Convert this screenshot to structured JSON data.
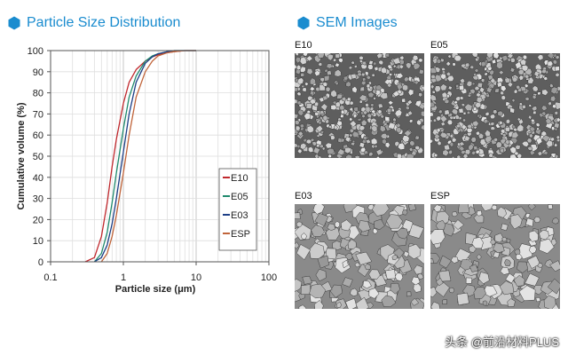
{
  "headers": {
    "left": "Particle Size Distribution",
    "right": "SEM Images"
  },
  "colors": {
    "accent": "#1a8ccf",
    "E10": "#c0282d",
    "E05": "#1f8a6d",
    "E03": "#1d3f86",
    "ESP": "#c0643a"
  },
  "chart_data": {
    "type": "line",
    "title": "",
    "xlabel": "Particle size  (μm)",
    "ylabel": "Cumulative volume  (%)",
    "xscale": "log",
    "xlim": [
      0.1,
      100
    ],
    "ylim": [
      0,
      100
    ],
    "xticks": [
      "0.1",
      "1",
      "10",
      "100"
    ],
    "yticks": [
      "0",
      "10",
      "20",
      "30",
      "40",
      "50",
      "60",
      "70",
      "80",
      "90",
      "100"
    ],
    "grid": true,
    "legend_position": "right",
    "series": [
      {
        "name": "E10",
        "color": "#c0282d",
        "x": [
          0.3,
          0.4,
          0.5,
          0.6,
          0.7,
          0.8,
          1.0,
          1.2,
          1.5,
          2,
          2.5,
          3,
          4,
          5,
          7,
          10
        ],
        "y": [
          0,
          2,
          12,
          28,
          45,
          58,
          75,
          85,
          91,
          95,
          97,
          98,
          99,
          99.5,
          100,
          100
        ]
      },
      {
        "name": "E05",
        "color": "#1f8a6d",
        "x": [
          0.4,
          0.5,
          0.6,
          0.7,
          0.8,
          1.0,
          1.2,
          1.5,
          2,
          2.5,
          3,
          4,
          5,
          7,
          10
        ],
        "y": [
          0,
          4,
          14,
          28,
          42,
          63,
          78,
          88,
          95,
          97.5,
          98.5,
          99.5,
          100,
          100,
          100
        ]
      },
      {
        "name": "E03",
        "color": "#1d3f86",
        "x": [
          0.4,
          0.5,
          0.6,
          0.7,
          0.8,
          1.0,
          1.2,
          1.5,
          2,
          2.5,
          3,
          4,
          5,
          7,
          10
        ],
        "y": [
          0,
          2,
          8,
          18,
          30,
          52,
          70,
          85,
          94,
          97,
          98.5,
          99.5,
          100,
          100,
          100
        ]
      },
      {
        "name": "ESP",
        "color": "#c0643a",
        "x": [
          0.5,
          0.6,
          0.7,
          0.8,
          1.0,
          1.2,
          1.5,
          2,
          2.5,
          3,
          4,
          5,
          7,
          10
        ],
        "y": [
          0,
          4,
          12,
          22,
          42,
          60,
          78,
          90,
          95,
          97.5,
          99,
          99.5,
          100,
          100
        ]
      }
    ]
  },
  "sem": [
    {
      "label": "E10",
      "size": "small"
    },
    {
      "label": "E05",
      "size": "small"
    },
    {
      "label": "E03",
      "size": "large"
    },
    {
      "label": "ESP",
      "size": "large"
    }
  ],
  "watermark": "头条 @前沿材料PLUS"
}
